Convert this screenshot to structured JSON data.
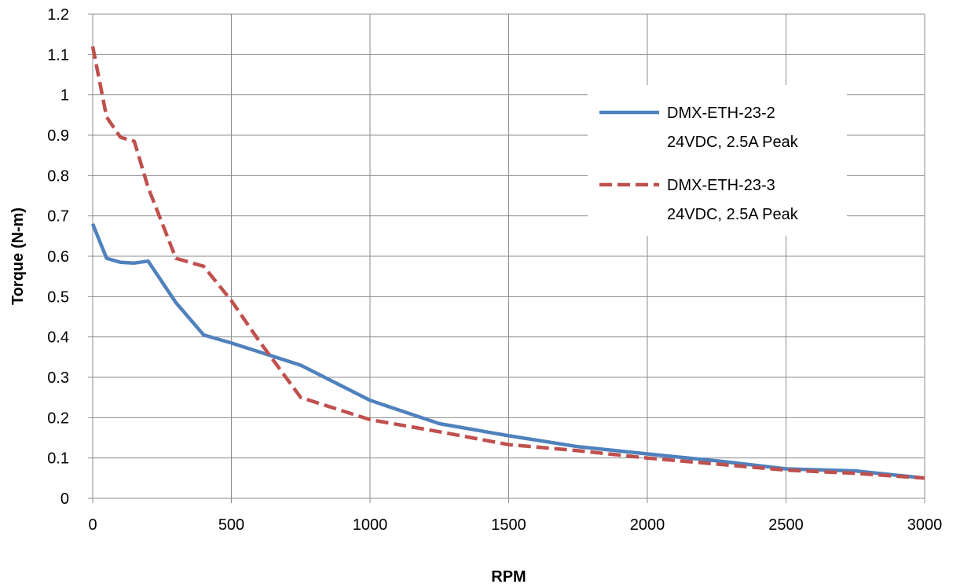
{
  "chart_data": {
    "type": "line",
    "title": "",
    "xlabel": "RPM",
    "ylabel": "Torque (N-m)",
    "xlim": [
      0,
      3000
    ],
    "ylim": [
      0,
      1.2
    ],
    "x_ticks": [
      "0",
      "500",
      "1000",
      "1500",
      "2000",
      "2500",
      "3000"
    ],
    "y_ticks": [
      "0",
      "0.1",
      "0.2",
      "0.3",
      "0.4",
      "0.5",
      "0.6",
      "0.7",
      "0.8",
      "0.9",
      "1",
      "1.1",
      "1.2"
    ],
    "grid": true,
    "legend_position": "right",
    "series": [
      {
        "name_lines": [
          "DMX-ETH-23-2",
          "24VDC, 2.5A Peak"
        ],
        "color": "#4f81bd",
        "style": "solid",
        "x": [
          0,
          50,
          100,
          150,
          200,
          300,
          400,
          500,
          750,
          1000,
          1250,
          1500,
          1750,
          2000,
          2250,
          2500,
          2750,
          3000
        ],
        "y": [
          0.68,
          0.595,
          0.585,
          0.583,
          0.588,
          0.485,
          0.405,
          0.385,
          0.33,
          0.243,
          0.185,
          0.155,
          0.128,
          0.11,
          0.093,
          0.073,
          0.068,
          0.05
        ]
      },
      {
        "name_lines": [
          "DMX-ETH-23-3",
          "24VDC, 2.5A Peak"
        ],
        "color": "#c0504d",
        "style": "dashed",
        "x": [
          0,
          50,
          100,
          150,
          200,
          300,
          400,
          500,
          600,
          750,
          1000,
          1250,
          1500,
          1750,
          2000,
          2250,
          2500,
          2750,
          3000
        ],
        "y": [
          1.12,
          0.945,
          0.895,
          0.885,
          0.77,
          0.595,
          0.575,
          0.49,
          0.39,
          0.25,
          0.195,
          0.165,
          0.133,
          0.118,
          0.1,
          0.085,
          0.07,
          0.062,
          0.05
        ]
      }
    ]
  }
}
